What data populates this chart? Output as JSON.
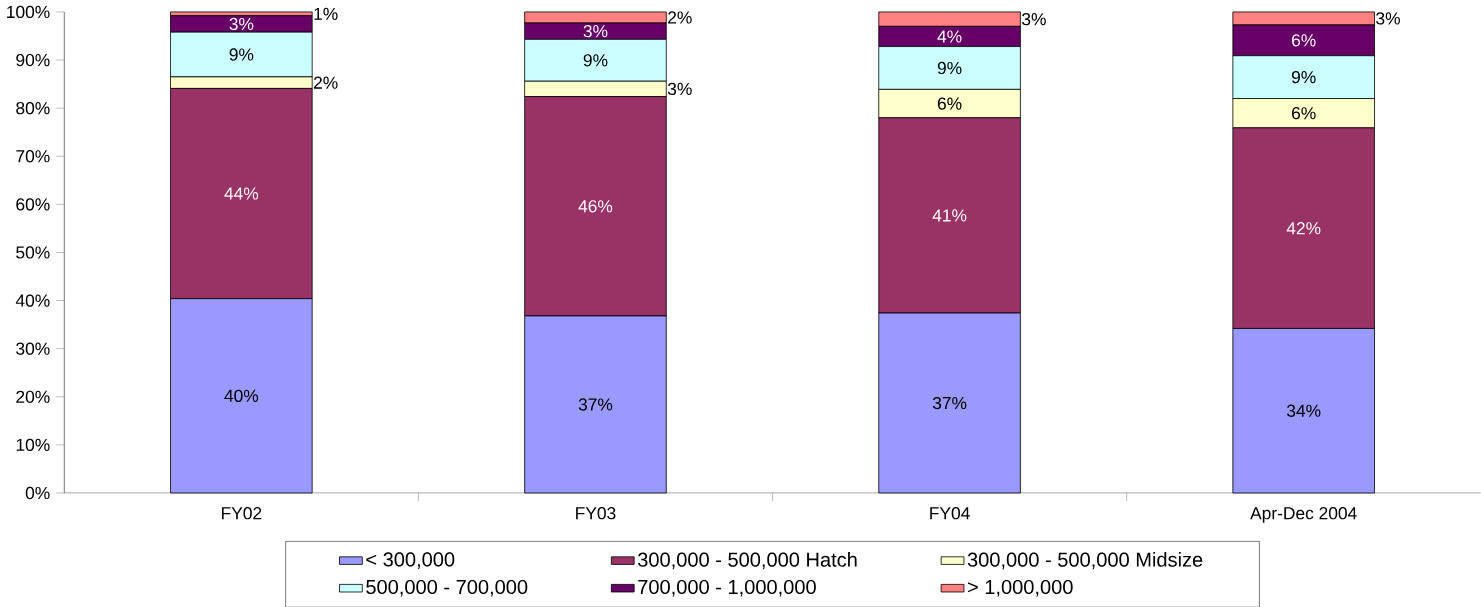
{
  "chart_data": {
    "type": "bar",
    "stacked": true,
    "categories": [
      "FY02",
      "FY03",
      "FY04",
      "Apr-Dec 2004"
    ],
    "ylim": [
      0,
      100
    ],
    "yticks": [
      {
        "value": 0,
        "label": "0%"
      },
      {
        "value": 10,
        "label": "10%"
      },
      {
        "value": 20,
        "label": "20%"
      },
      {
        "value": 30,
        "label": "30%"
      },
      {
        "value": 40,
        "label": "40%"
      },
      {
        "value": 50,
        "label": "50%"
      },
      {
        "value": 60,
        "label": "60%"
      },
      {
        "value": 70,
        "label": "70%"
      },
      {
        "value": 80,
        "label": "80%"
      },
      {
        "value": 90,
        "label": "90%"
      },
      {
        "value": 100,
        "label": "100%"
      }
    ],
    "legend": "bottom",
    "series": [
      {
        "name": "< 300,000",
        "color": "#9999ff",
        "values": [
          40.4,
          36.8,
          37.4,
          34.2
        ],
        "value_labels": [
          "40%",
          "37%",
          "37%",
          "34%"
        ]
      },
      {
        "name": "300,000 - 500,000 Hatch",
        "color": "#993366",
        "values": [
          43.7,
          45.6,
          40.6,
          41.7
        ],
        "value_labels": [
          "44%",
          "46%",
          "41%",
          "42%"
        ]
      },
      {
        "name": "300,000 - 500,000 Midsize",
        "color": "#ffffcc",
        "values": [
          2.4,
          3.2,
          5.9,
          6.1
        ],
        "value_labels": [
          "2%",
          "3%",
          "6%",
          "6%"
        ]
      },
      {
        "name": "500,000 - 700,000",
        "color": "#ccffff",
        "values": [
          9.3,
          8.7,
          8.9,
          8.9
        ],
        "value_labels": [
          "9%",
          "9%",
          "9%",
          "9%"
        ]
      },
      {
        "name": "700,000 - 1,000,000",
        "color": "#660066",
        "values": [
          3.4,
          3.4,
          4.2,
          6.4
        ],
        "value_labels": [
          "3%",
          "3%",
          "4%",
          "6%"
        ]
      },
      {
        "name": "> 1,000,000",
        "color": "#ff8080",
        "values": [
          0.8,
          2.3,
          3.0,
          2.7
        ],
        "value_labels": [
          "1%",
          "2%",
          "3%",
          "3%"
        ]
      }
    ]
  }
}
